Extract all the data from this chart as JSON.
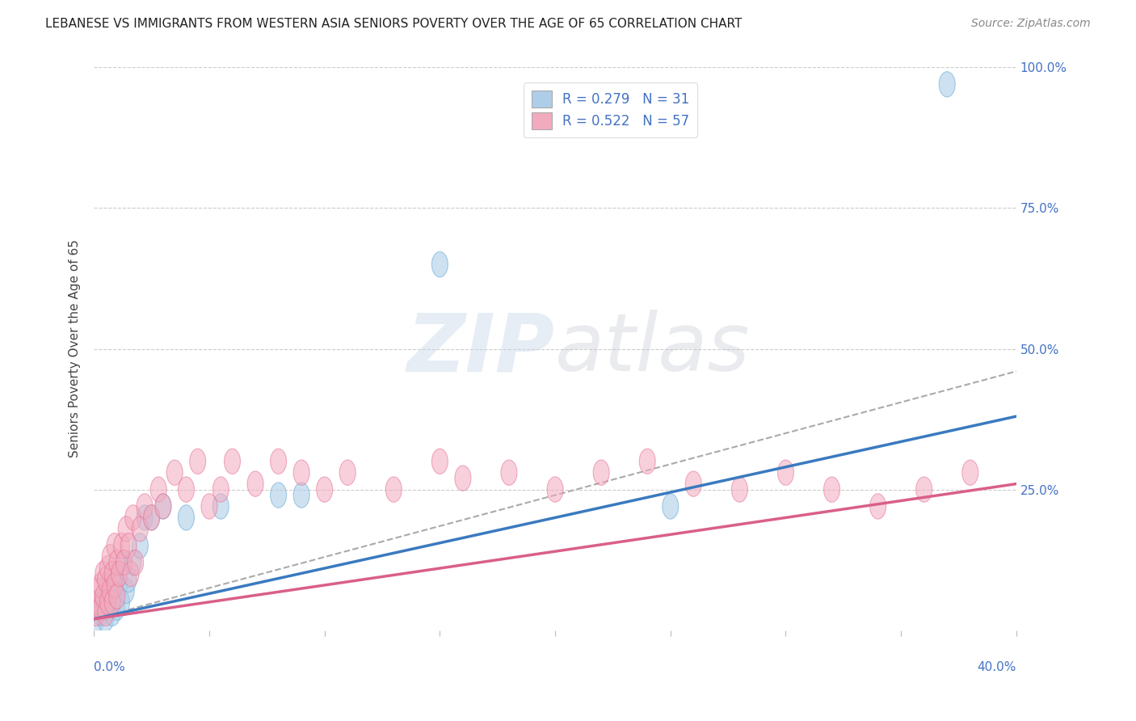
{
  "title": "LEBANESE VS IMMIGRANTS FROM WESTERN ASIA SENIORS POVERTY OVER THE AGE OF 65 CORRELATION CHART",
  "source": "Source: ZipAtlas.com",
  "ylabel": "Seniors Poverty Over the Age of 65",
  "xlim": [
    0.0,
    0.4
  ],
  "ylim": [
    0.0,
    1.0
  ],
  "ytick_vals": [
    0.0,
    0.25,
    0.5,
    0.75,
    1.0
  ],
  "ytick_labels": [
    "",
    "25.0%",
    "50.0%",
    "75.0%",
    "100.0%"
  ],
  "legend1_label": "R = 0.279   N = 31",
  "legend2_label": "R = 0.522   N = 57",
  "legend1_color": "#aecde8",
  "legend2_color": "#f2abbe",
  "blue_scatter_face": "#aecde8",
  "blue_scatter_edge": "#6baed6",
  "pink_scatter_face": "#f2abbe",
  "pink_scatter_edge": "#e87096",
  "blue_line_color": "#3a7abf",
  "pink_line_color": "#d95f8a",
  "dashed_line_color": "#aaaaaa",
  "background_color": "#ffffff",
  "grid_color": "#cccccc",
  "title_color": "#222222",
  "source_color": "#888888",
  "axis_label_color": "#444444",
  "tick_label_color": "#4472c4",
  "legend_label_color": "#4472c4",
  "watermark_color": "#c8d8e8",
  "lebanese_x": [
    0.001,
    0.002,
    0.003,
    0.004,
    0.005,
    0.005,
    0.006,
    0.006,
    0.007,
    0.008,
    0.008,
    0.009,
    0.01,
    0.01,
    0.011,
    0.012,
    0.013,
    0.014,
    0.015,
    0.017,
    0.02,
    0.022,
    0.025,
    0.03,
    0.04,
    0.055,
    0.08,
    0.09,
    0.15,
    0.25,
    0.37
  ],
  "lebanese_y": [
    0.02,
    0.04,
    0.03,
    0.05,
    0.02,
    0.06,
    0.04,
    0.08,
    0.05,
    0.07,
    0.03,
    0.06,
    0.1,
    0.04,
    0.08,
    0.05,
    0.12,
    0.07,
    0.09,
    0.12,
    0.15,
    0.2,
    0.2,
    0.22,
    0.2,
    0.22,
    0.24,
    0.24,
    0.65,
    0.22,
    0.97
  ],
  "imm_x": [
    0.001,
    0.002,
    0.002,
    0.003,
    0.003,
    0.004,
    0.004,
    0.005,
    0.005,
    0.006,
    0.006,
    0.007,
    0.007,
    0.008,
    0.008,
    0.009,
    0.009,
    0.01,
    0.01,
    0.011,
    0.012,
    0.013,
    0.014,
    0.015,
    0.016,
    0.017,
    0.018,
    0.02,
    0.022,
    0.025,
    0.028,
    0.03,
    0.035,
    0.04,
    0.045,
    0.05,
    0.055,
    0.06,
    0.07,
    0.08,
    0.09,
    0.1,
    0.11,
    0.13,
    0.15,
    0.16,
    0.18,
    0.2,
    0.22,
    0.24,
    0.26,
    0.28,
    0.3,
    0.32,
    0.34,
    0.36,
    0.38
  ],
  "imm_y": [
    0.03,
    0.05,
    0.07,
    0.04,
    0.08,
    0.06,
    0.1,
    0.03,
    0.09,
    0.05,
    0.11,
    0.07,
    0.13,
    0.05,
    0.1,
    0.08,
    0.15,
    0.06,
    0.12,
    0.1,
    0.15,
    0.12,
    0.18,
    0.15,
    0.1,
    0.2,
    0.12,
    0.18,
    0.22,
    0.2,
    0.25,
    0.22,
    0.28,
    0.25,
    0.3,
    0.22,
    0.25,
    0.3,
    0.26,
    0.3,
    0.28,
    0.25,
    0.28,
    0.25,
    0.3,
    0.27,
    0.28,
    0.25,
    0.28,
    0.3,
    0.26,
    0.25,
    0.28,
    0.25,
    0.22,
    0.25,
    0.28
  ],
  "blue_line_x": [
    0.0,
    0.4
  ],
  "blue_line_y": [
    0.02,
    0.38
  ],
  "pink_line_x": [
    0.0,
    0.4
  ],
  "pink_line_y": [
    0.02,
    0.26
  ],
  "dashed_line_x": [
    0.0,
    0.4
  ],
  "dashed_line_y": [
    0.02,
    0.46
  ],
  "title_fontsize": 11,
  "source_fontsize": 10,
  "ylabel_fontsize": 11,
  "tick_fontsize": 11,
  "legend_fontsize": 12,
  "scatter_size": 180
}
